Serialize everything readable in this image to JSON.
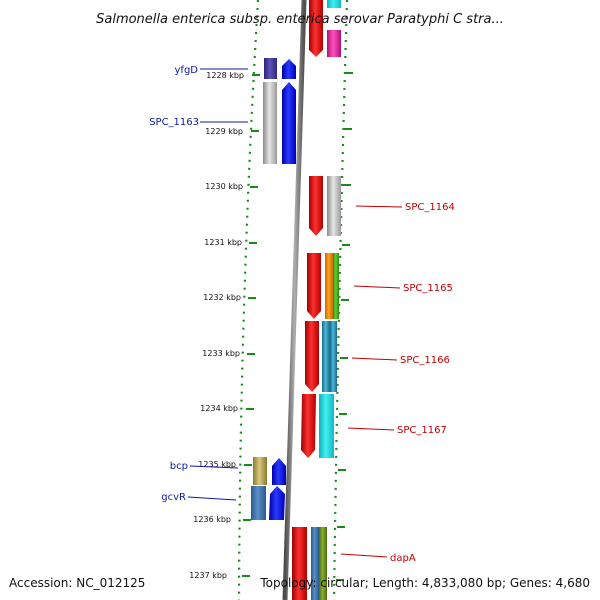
{
  "title": "Salmonella enterica subsp. enterica serovar Paratyphi C stra...",
  "footer": {
    "accession": "Accession: NC_012125",
    "summary": "Topology: circular; Length: 4,833,080 bp; Genes: 4,680"
  },
  "scale": {
    "unit": "kbp",
    "ticks": [
      "1228 kbp",
      "1229 kbp",
      "1230 kbp",
      "1231 kbp",
      "1232 kbp",
      "1233 kbp",
      "1234 kbp",
      "1235 kbp",
      "1236 kbp",
      "1237 kbp"
    ]
  },
  "genes_left": [
    {
      "name": "yfgD"
    },
    {
      "name": "SPC_1163"
    },
    {
      "name": "bcp"
    },
    {
      "name": "gcvR"
    }
  ],
  "genes_right": [
    {
      "name": "SPC_1164"
    },
    {
      "name": "SPC_1165"
    },
    {
      "name": "SPC_1166"
    },
    {
      "name": "SPC_1167"
    },
    {
      "name": "dapA"
    }
  ],
  "colors": {
    "left_label": "#0b1a9e",
    "right_label": "#c40000",
    "forward_strand": "#0000ff",
    "reverse_strand": "#ff0000",
    "backbone": "#7a7a7a",
    "tick": "#1a8a1a"
  }
}
